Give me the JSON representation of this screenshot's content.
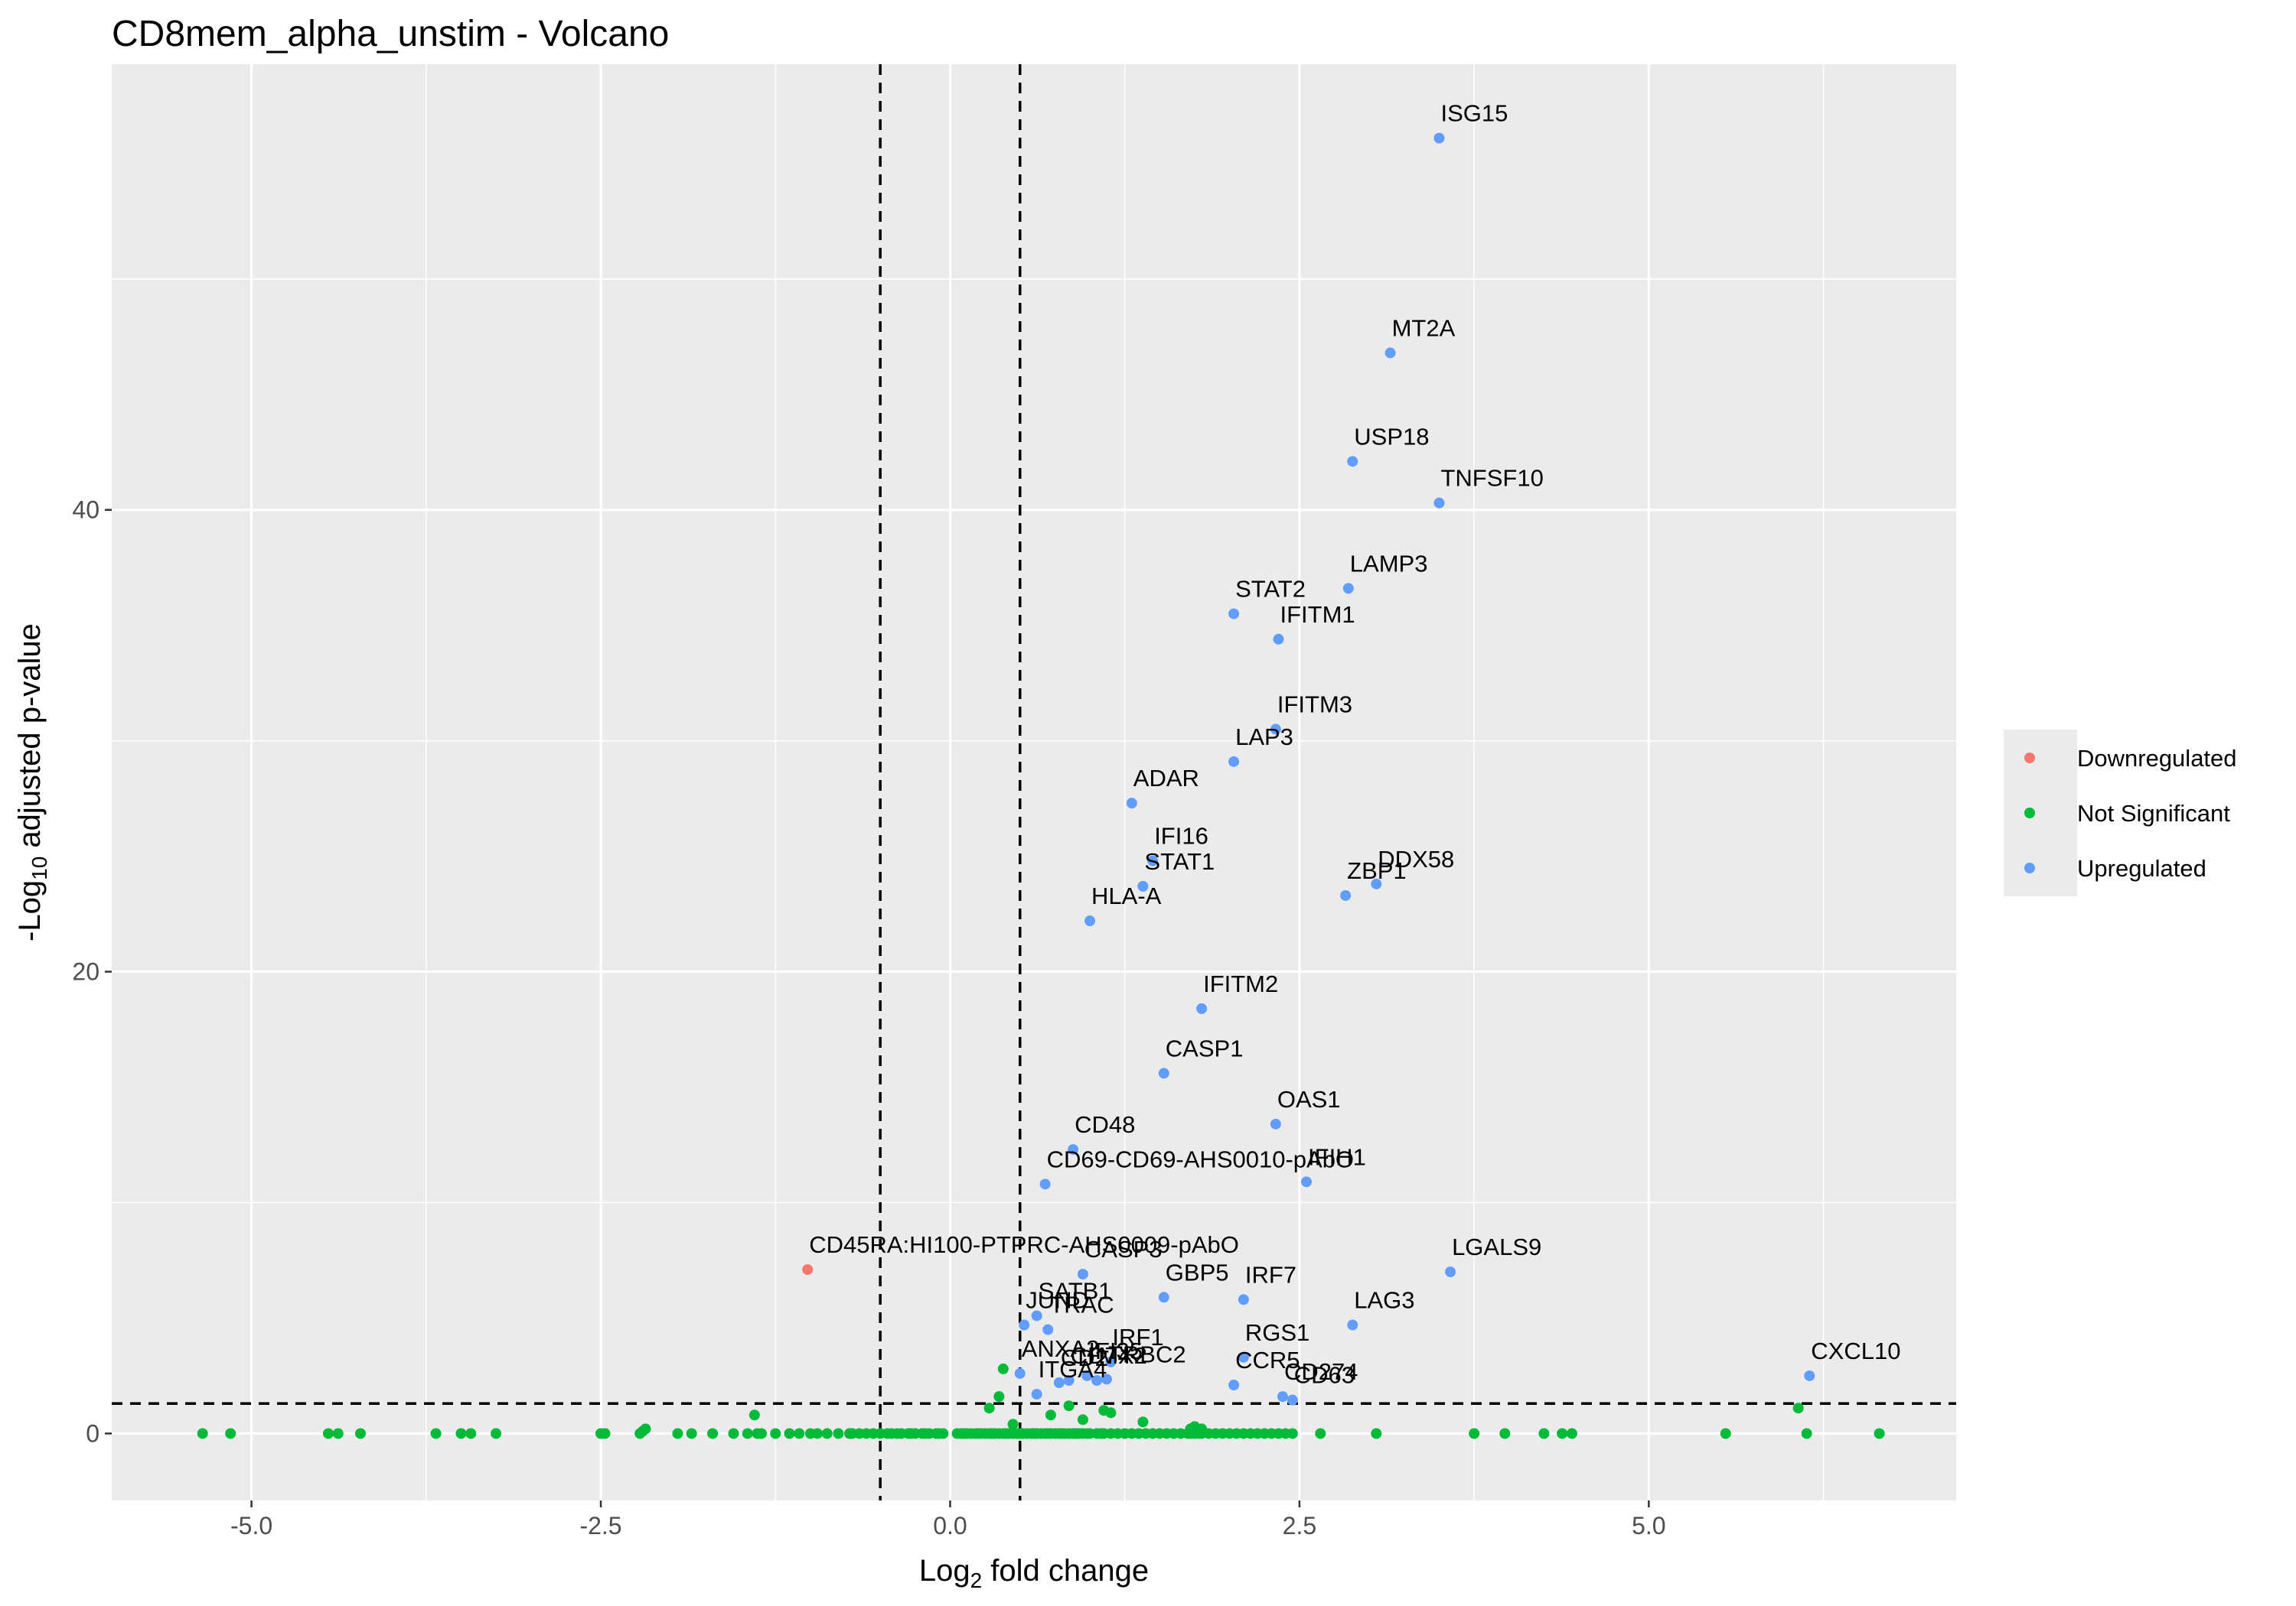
{
  "chart_data": {
    "type": "scatter",
    "title": "CD8mem_alpha_unstim - Volcano",
    "xlabel": {
      "prefix": "Log",
      "sub": "2",
      "suffix": " fold change"
    },
    "ylabel": {
      "prefix": "-Log",
      "sub": "10",
      "suffix": " adjusted p-value"
    },
    "xlim": [
      -6.0,
      7.2
    ],
    "ylim": [
      -2.9,
      59.3
    ],
    "x_ticks": [
      -5.0,
      -2.5,
      0.0,
      2.5,
      5.0
    ],
    "x_tick_labels": [
      "-5.0",
      "-2.5",
      "0.0",
      "2.5",
      "5.0"
    ],
    "y_ticks": [
      0,
      20,
      40
    ],
    "y_tick_labels": [
      "0",
      "20",
      "40"
    ],
    "grid": true,
    "thresholds": {
      "fold_change": [
        -0.5,
        0.5
      ],
      "neg_log10_p": 1.3
    },
    "legend": {
      "position": "right",
      "entries": [
        {
          "name": "Downregulated",
          "color": "#F8766D"
        },
        {
          "name": "Not Significant",
          "color": "#00BA38"
        },
        {
          "name": "Upregulated",
          "color": "#619CFF"
        }
      ]
    },
    "series": [
      {
        "name": "Upregulated",
        "color": "#619CFF",
        "points": [
          {
            "label": "ISG15",
            "x": 3.5,
            "y": 56.1
          },
          {
            "label": "MT2A",
            "x": 3.15,
            "y": 46.8
          },
          {
            "label": "USP18",
            "x": 2.88,
            "y": 42.1
          },
          {
            "label": "TNFSF10",
            "x": 3.5,
            "y": 40.3
          },
          {
            "label": "LAMP3",
            "x": 2.85,
            "y": 36.6
          },
          {
            "label": "STAT2",
            "x": 2.03,
            "y": 35.5
          },
          {
            "label": "IFITM1",
            "x": 2.35,
            "y": 34.4
          },
          {
            "label": "IFITM3",
            "x": 2.33,
            "y": 30.5
          },
          {
            "label": "LAP3",
            "x": 2.03,
            "y": 29.1
          },
          {
            "label": "ADAR",
            "x": 1.3,
            "y": 27.3
          },
          {
            "label": "IFI16",
            "x": 1.45,
            "y": 24.8
          },
          {
            "label": "DDX58",
            "x": 3.05,
            "y": 23.8
          },
          {
            "label": "STAT1",
            "x": 1.38,
            "y": 23.7
          },
          {
            "label": "ZBP1",
            "x": 2.83,
            "y": 23.3
          },
          {
            "label": "HLA-A",
            "x": 1.0,
            "y": 22.2
          },
          {
            "label": "IFITM2",
            "x": 1.8,
            "y": 18.4
          },
          {
            "label": "CASP1",
            "x": 1.53,
            "y": 15.6
          },
          {
            "label": "OAS1",
            "x": 2.33,
            "y": 13.4
          },
          {
            "label": "CD48",
            "x": 0.88,
            "y": 12.3
          },
          {
            "label": "IFIH1",
            "x": 2.55,
            "y": 10.9
          },
          {
            "label": "CD69-CD69-AHS0010-pAbO",
            "x": 0.68,
            "y": 10.8
          },
          {
            "label": "CASP3",
            "x": 0.95,
            "y": 6.9
          },
          {
            "label": "LGALS9",
            "x": 3.58,
            "y": 7.0
          },
          {
            "label": "GBP5",
            "x": 1.53,
            "y": 5.9
          },
          {
            "label": "IRF7",
            "x": 2.1,
            "y": 5.8
          },
          {
            "label": "SATB1",
            "x": 0.62,
            "y": 5.1
          },
          {
            "label": "JUND",
            "x": 0.53,
            "y": 4.7
          },
          {
            "label": "TRAC",
            "x": 0.7,
            "y": 4.5
          },
          {
            "label": "LAG3",
            "x": 2.88,
            "y": 4.7
          },
          {
            "label": "IRF1",
            "x": 1.15,
            "y": 3.1
          },
          {
            "label": "RGS1",
            "x": 2.1,
            "y": 3.3
          },
          {
            "label": "CD2",
            "x": 0.78,
            "y": 2.2
          },
          {
            "label": "IFI35",
            "x": 0.98,
            "y": 2.5
          },
          {
            "label": "MX2",
            "x": 1.05,
            "y": 2.3
          },
          {
            "label": "TRBC2",
            "x": 1.12,
            "y": 2.35
          },
          {
            "label": "ANXA2",
            "x": 0.5,
            "y": 2.6
          },
          {
            "label": "CD74",
            "x": 0.85,
            "y": 2.3
          },
          {
            "label": "ITGA4",
            "x": 0.62,
            "y": 1.7
          },
          {
            "label": "CCR5",
            "x": 2.03,
            "y": 2.1
          },
          {
            "label": "CD274",
            "x": 2.38,
            "y": 1.6
          },
          {
            "label": "CD63",
            "x": 2.45,
            "y": 1.45
          },
          {
            "label": "CXCL10",
            "x": 6.15,
            "y": 2.5
          }
        ]
      },
      {
        "name": "Downregulated",
        "color": "#F8766D",
        "points": [
          {
            "label": "CD45RA:HI100-PTPRC-AHS0009-pAbO",
            "x": -1.02,
            "y": 7.1
          }
        ]
      },
      {
        "name": "Not Significant",
        "color": "#00BA38",
        "x": [
          -5.35,
          -5.15,
          -4.45,
          -4.38,
          -4.22,
          -3.68,
          -3.5,
          -3.43,
          -3.25,
          -2.5,
          -2.47,
          -2.22,
          -2.2,
          -2.18,
          -1.95,
          -1.85,
          -1.7,
          -1.55,
          -1.45,
          -1.38,
          -1.4,
          -1.35,
          -1.25,
          -1.15,
          -1.08,
          -1.0,
          -0.95,
          -0.88,
          -0.8,
          -0.72,
          -0.7,
          -0.65,
          -0.6,
          -0.55,
          -0.5,
          -0.45,
          -0.42,
          -0.38,
          -0.35,
          -0.3,
          -0.28,
          -0.25,
          -0.2,
          -0.18,
          -0.15,
          -0.1,
          -0.08,
          -0.05,
          0.05,
          0.08,
          0.1,
          0.12,
          0.15,
          0.18,
          0.2,
          0.22,
          0.25,
          0.28,
          0.3,
          0.32,
          0.35,
          0.38,
          0.4,
          0.42,
          0.45,
          0.48,
          0.5,
          0.52,
          0.55,
          0.58,
          0.6,
          0.62,
          0.65,
          0.68,
          0.7,
          0.72,
          0.75,
          0.78,
          0.8,
          0.82,
          0.85,
          0.88,
          0.9,
          0.92,
          0.95,
          0.98,
          1.0,
          1.05,
          1.08,
          1.1,
          1.15,
          1.2,
          1.25,
          1.3,
          1.35,
          1.4,
          1.45,
          1.5,
          1.55,
          1.6,
          1.65,
          1.7,
          1.72,
          1.75,
          1.78,
          1.8,
          1.85,
          1.9,
          1.95,
          2.0,
          2.05,
          2.1,
          2.15,
          2.2,
          2.25,
          2.3,
          2.35,
          2.4,
          2.45,
          2.65,
          3.05,
          3.75,
          3.97,
          4.25,
          4.38,
          4.45,
          5.55,
          6.13,
          6.65,
          0.35,
          0.38,
          0.28,
          0.72,
          0.85,
          1.1,
          1.15,
          1.38,
          0.45,
          0.95,
          1.75,
          1.8,
          1.72,
          6.07
        ],
        "y": [
          0.0,
          0.0,
          0.0,
          0.0,
          0.0,
          0.0,
          0.0,
          0.0,
          0.0,
          0.0,
          0.0,
          0.0,
          0.1,
          0.2,
          0.0,
          0.0,
          0.0,
          0.0,
          0.0,
          0.0,
          0.8,
          0.0,
          0.0,
          0.0,
          0.0,
          0.0,
          0.0,
          0.0,
          0.0,
          0.0,
          0.0,
          0.0,
          0.0,
          0.0,
          0.0,
          0.0,
          0.0,
          0.0,
          0.0,
          0.0,
          0.0,
          0.0,
          0.0,
          0.0,
          0.0,
          0.0,
          0.0,
          0.0,
          0.0,
          0.0,
          0.0,
          0.0,
          0.0,
          0.0,
          0.0,
          0.0,
          0.0,
          0.0,
          0.0,
          0.0,
          0.0,
          0.0,
          0.0,
          0.0,
          0.0,
          0.0,
          0.0,
          0.0,
          0.0,
          0.0,
          0.0,
          0.0,
          0.0,
          0.0,
          0.0,
          0.0,
          0.0,
          0.0,
          0.0,
          0.0,
          0.0,
          0.0,
          0.0,
          0.0,
          0.0,
          0.0,
          0.0,
          0.0,
          0.0,
          0.0,
          0.0,
          0.0,
          0.0,
          0.0,
          0.0,
          0.0,
          0.0,
          0.0,
          0.0,
          0.0,
          0.0,
          0.0,
          0.0,
          0.0,
          0.0,
          0.0,
          0.0,
          0.0,
          0.0,
          0.0,
          0.0,
          0.0,
          0.0,
          0.0,
          0.0,
          0.0,
          0.0,
          0.0,
          0.0,
          0.0,
          0.0,
          0.0,
          0.0,
          0.0,
          0.0,
          0.0,
          0.0,
          0.0,
          0.0,
          1.6,
          2.8,
          1.1,
          0.8,
          1.2,
          1.0,
          0.9,
          0.5,
          0.4,
          0.6,
          0.3,
          0.2,
          0.2,
          1.1
        ]
      }
    ]
  }
}
